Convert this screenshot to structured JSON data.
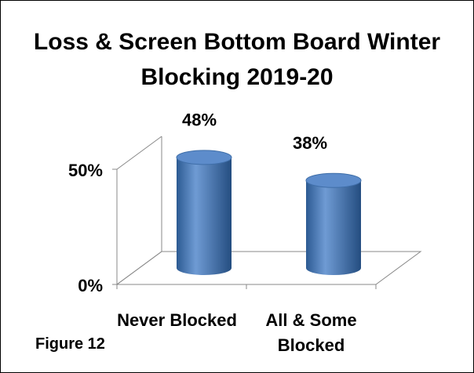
{
  "chart_data": {
    "type": "bar3d",
    "title": "Loss & Screen Bottom Board Winter Blocking 2019-20",
    "categories": [
      "Never Blocked",
      "All & Some Blocked"
    ],
    "values": [
      48,
      38
    ],
    "value_labels": [
      "48%",
      "38%"
    ],
    "color": "#4f81bd",
    "ylim": [
      0,
      50
    ],
    "yticks": [
      {
        "value": 0,
        "label": "0%"
      },
      {
        "value": 50,
        "label": "50%"
      }
    ],
    "grid": true,
    "annotation": "Figure 12"
  }
}
